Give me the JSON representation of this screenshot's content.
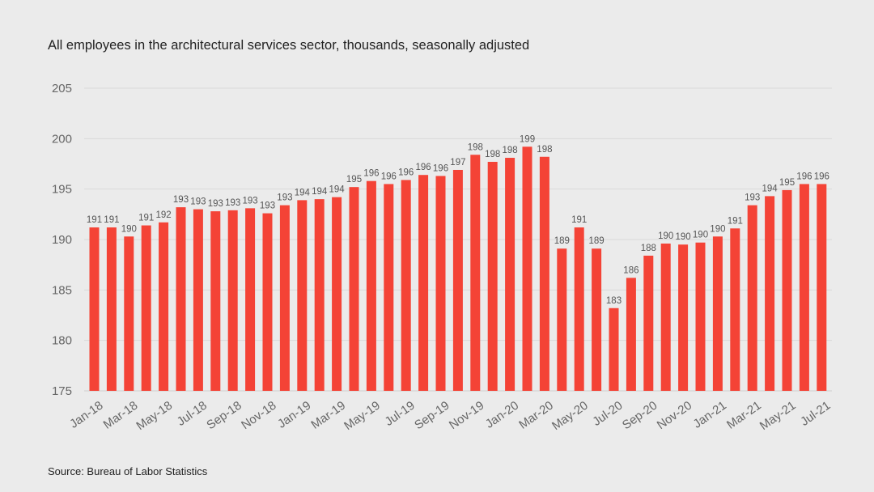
{
  "title": "All employees  in the architectural  services sector, thousands, seasonally adjusted",
  "source": "Source: Bureau of Labor Statistics",
  "colors": {
    "background": "#ebebeb",
    "bar": "#f44336",
    "grid": "#d9d9d9",
    "axis_text": "#666666"
  },
  "chart_data": {
    "type": "bar",
    "title": "All employees  in the architectural  services sector, thousands, seasonally adjusted",
    "xlabel": "",
    "ylabel": "",
    "ylim": [
      175,
      205
    ],
    "yticks": [
      175,
      180,
      185,
      190,
      195,
      200,
      205
    ],
    "grid": true,
    "categories": [
      "Jan-18",
      "Feb-18",
      "Mar-18",
      "Apr-18",
      "May-18",
      "Jun-18",
      "Jul-18",
      "Aug-18",
      "Sep-18",
      "Oct-18",
      "Nov-18",
      "Dec-18",
      "Jan-19",
      "Feb-19",
      "Mar-19",
      "Apr-19",
      "May-19",
      "Jun-19",
      "Jul-19",
      "Aug-19",
      "Sep-19",
      "Oct-19",
      "Nov-19",
      "Dec-19",
      "Jan-20",
      "Feb-20",
      "Mar-20",
      "Apr-20",
      "May-20",
      "Jun-20",
      "Jul-20",
      "Aug-20",
      "Sep-20",
      "Oct-20",
      "Nov-20",
      "Dec-20",
      "Jan-21",
      "Feb-21",
      "Mar-21",
      "Apr-21",
      "May-21",
      "Jun-21",
      "Jul-21"
    ],
    "x_tick_labels": [
      "Jan-18",
      "Mar-18",
      "May-18",
      "Jul-18",
      "Sep-18",
      "Nov-18",
      "Jan-19",
      "Mar-19",
      "May-19",
      "Jul-19",
      "Sep-19",
      "Nov-19",
      "Jan-20",
      "Mar-20",
      "May-20",
      "Jul-20",
      "Sep-20",
      "Nov-20",
      "Jan-21",
      "Mar-21",
      "May-21",
      "Jul-21"
    ],
    "values": [
      191.2,
      191.2,
      190.3,
      191.4,
      191.7,
      193.2,
      193.0,
      192.8,
      192.9,
      193.1,
      192.6,
      193.4,
      193.9,
      194.0,
      194.2,
      195.2,
      195.8,
      195.5,
      195.9,
      196.4,
      196.3,
      196.9,
      198.4,
      197.7,
      198.1,
      199.2,
      198.2,
      189.1,
      191.2,
      189.1,
      183.2,
      186.2,
      188.4,
      189.6,
      189.5,
      189.7,
      190.3,
      191.1,
      193.4,
      194.3,
      194.9,
      195.5,
      195.5
    ],
    "data_labels": [
      "191",
      "191",
      "190",
      "191",
      "192",
      "193",
      "193",
      "193",
      "193",
      "193",
      "193",
      "193",
      "194",
      "194",
      "194",
      "195",
      "196",
      "196",
      "196",
      "196",
      "196",
      "197",
      "198",
      "198",
      "198",
      "199",
      "198",
      "189",
      "191",
      "189",
      "183",
      "186",
      "188",
      "190",
      "190",
      "190",
      "190",
      "191",
      "193",
      "194",
      "195",
      "196",
      "196"
    ]
  }
}
